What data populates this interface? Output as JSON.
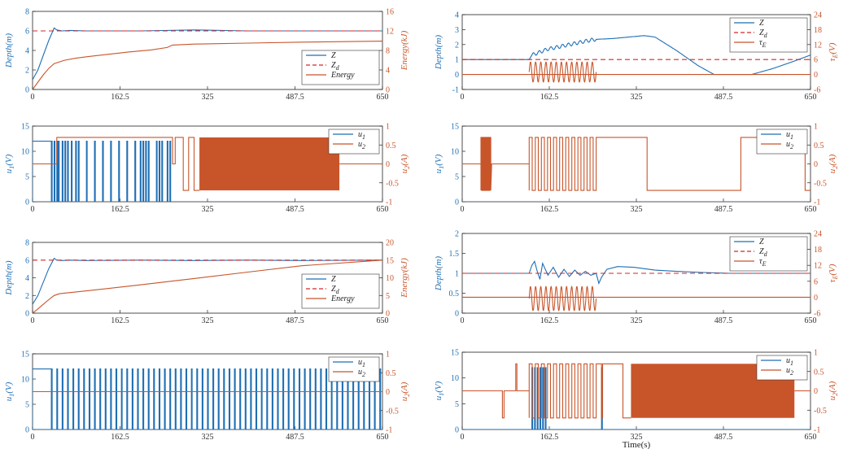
{
  "colors": {
    "blue": "#1f6fb4",
    "orange": "#c8552a",
    "red": "#d62728",
    "axis": "#333333"
  },
  "chart_data": [
    {
      "id": "a",
      "type": "line",
      "xlim": [
        0,
        650
      ],
      "xticks": [
        0,
        162.5,
        325,
        487.5,
        650
      ],
      "xtick_labels": [
        "0",
        "162.5",
        "325",
        "487.5",
        "650"
      ],
      "ylabel_left": "Depth(m)",
      "ylabel_right": "Energy(kJ)",
      "ylim_left": [
        0,
        8
      ],
      "yticks_left": [
        0,
        2,
        4,
        6,
        8
      ],
      "ytick_labels_left": [
        "0",
        "2",
        "4",
        "6",
        "8"
      ],
      "ylim_right": [
        0,
        16
      ],
      "yticks_right": [
        0,
        4,
        8,
        12,
        16
      ],
      "ytick_labels_right": [
        "0",
        "4",
        "8",
        "12",
        "16"
      ],
      "legend": [
        "Z",
        "Zd",
        "Energy"
      ],
      "legend_position": "lower-right",
      "series": [
        {
          "name": "Z",
          "axis": "left",
          "style": "solid",
          "x": [
            0,
            10,
            20,
            30,
            40,
            45,
            55,
            70,
            100,
            200,
            300,
            400,
            500,
            650
          ],
          "y": [
            1,
            2,
            3.5,
            5,
            6.3,
            6.1,
            6.0,
            6.05,
            6.0,
            6.0,
            6.1,
            6.0,
            6.0,
            6.0
          ]
        },
        {
          "name": "Zd",
          "axis": "left",
          "style": "dashed",
          "x": [
            0,
            650
          ],
          "y": [
            6,
            6
          ]
        },
        {
          "name": "Energy",
          "axis": "right",
          "style": "solid",
          "x": [
            0,
            10,
            20,
            30,
            40,
            60,
            80,
            100,
            140,
            180,
            220,
            250,
            260,
            300,
            400,
            500,
            650
          ],
          "y": [
            0,
            1.5,
            3,
            4.3,
            5.3,
            6.0,
            6.4,
            6.7,
            7.2,
            7.7,
            8.1,
            8.6,
            9.1,
            9.3,
            9.5,
            9.7,
            9.9
          ]
        }
      ]
    },
    {
      "id": "b",
      "type": "line",
      "xlim": [
        0,
        650
      ],
      "xticks": [
        0,
        162.5,
        325,
        487.5,
        650
      ],
      "xtick_labels": [
        "0",
        "162.5",
        "325",
        "487.5",
        "650"
      ],
      "ylabel_left": "u1(V)",
      "ylabel_right": "u2(A)",
      "ylim_left": [
        0,
        15
      ],
      "yticks_left": [
        0,
        5,
        10,
        15
      ],
      "ytick_labels_left": [
        "0",
        "5",
        "10",
        "15"
      ],
      "ylim_right": [
        -1,
        1
      ],
      "yticks_right": [
        -1,
        -0.5,
        0,
        0.5,
        1
      ],
      "ytick_labels_right": [
        "-1",
        "-0.5",
        "0",
        "0.5",
        "1"
      ],
      "legend": [
        "u1",
        "u2"
      ],
      "legend_position": "top-right",
      "u1_high": 12,
      "u1_high_until": 35,
      "u1_pulses": [
        35,
        40,
        45,
        48,
        55,
        60,
        65,
        72,
        80,
        85,
        100,
        115,
        130,
        145,
        160,
        175,
        190,
        200,
        205,
        210,
        215,
        230,
        235,
        240,
        250,
        255
      ],
      "u2_segments": [
        {
          "x": [
            0,
            45
          ],
          "y": 0
        },
        {
          "x": [
            45,
            260
          ],
          "y": 0.7
        },
        {
          "x": [
            260,
            265
          ],
          "y": 0
        },
        {
          "x": [
            265,
            280
          ],
          "y": 0.7
        },
        {
          "x": [
            280,
            290
          ],
          "y": -0.7
        },
        {
          "x": [
            290,
            300
          ],
          "y": 0.7
        },
        {
          "x": [
            300,
            310
          ],
          "y": -0.7
        }
      ],
      "u2_fill": {
        "x": [
          310,
          570
        ],
        "y": [
          -0.7,
          0.7
        ]
      },
      "u2_tail": {
        "x": [
          570,
          650
        ],
        "y": 0
      }
    },
    {
      "id": "c",
      "type": "line",
      "xlim": [
        0,
        650
      ],
      "xticks": [
        0,
        162.5,
        325,
        487.5,
        650
      ],
      "xtick_labels": [
        "0",
        "162.5",
        "325",
        "487.5",
        "650"
      ],
      "ylabel_left": "Depth(m)",
      "ylabel_right": "Energy(kJ)",
      "ylim_left": [
        0,
        8
      ],
      "yticks_left": [
        0,
        2,
        4,
        6,
        8
      ],
      "ytick_labels_left": [
        "0",
        "2",
        "4",
        "6",
        "8"
      ],
      "ylim_right": [
        0,
        20
      ],
      "yticks_right": [
        0,
        5,
        10,
        15,
        20
      ],
      "ytick_labels_right": [
        "0",
        "5",
        "10",
        "15",
        "20"
      ],
      "legend": [
        "Z",
        "Zd",
        "Energy"
      ],
      "legend_position": "lower-right",
      "series": [
        {
          "name": "Z",
          "axis": "left",
          "style": "solid",
          "x": [
            0,
            10,
            20,
            30,
            40,
            45,
            55,
            70,
            100,
            200,
            300,
            400,
            500,
            650
          ],
          "y": [
            1,
            2,
            3.5,
            5,
            6.2,
            6.0,
            5.95,
            6.0,
            5.95,
            6.0,
            5.95,
            6.0,
            5.95,
            6.0
          ]
        },
        {
          "name": "Zd",
          "axis": "left",
          "style": "dashed",
          "x": [
            0,
            650
          ],
          "y": [
            6,
            6
          ]
        },
        {
          "name": "Energy",
          "axis": "right",
          "style": "solid",
          "x": [
            0,
            10,
            20,
            30,
            40,
            50,
            100,
            200,
            300,
            400,
            500,
            650
          ],
          "y": [
            0,
            1.2,
            2.5,
            3.8,
            5.0,
            5.5,
            6.3,
            8.0,
            9.8,
            11.6,
            13.4,
            15.0
          ]
        }
      ]
    },
    {
      "id": "d",
      "type": "line",
      "xlim": [
        0,
        650
      ],
      "xticks": [
        0,
        162.5,
        325,
        487.5,
        650
      ],
      "xtick_labels": [
        "0",
        "162.5",
        "325",
        "487.5",
        "650"
      ],
      "ylabel_left": "u1(V)",
      "ylabel_right": "u2(A)",
      "ylim_left": [
        0,
        15
      ],
      "yticks_left": [
        0,
        5,
        10,
        15
      ],
      "ytick_labels_left": [
        "0",
        "5",
        "10",
        "15"
      ],
      "ylim_right": [
        -1,
        1
      ],
      "yticks_right": [
        -1,
        -0.5,
        0,
        0.5,
        1
      ],
      "ytick_labels_right": [
        "-1",
        "-0.5",
        "0",
        "0.5",
        "1"
      ],
      "legend": [
        "u1",
        "u2"
      ],
      "legend_position": "top-right",
      "u1_high": 12,
      "u1_high_until": 35,
      "u1_pulse_start": 35,
      "u1_pulse_end": 645,
      "u1_pulse_count": 62,
      "u2_constant": 0
    },
    {
      "id": "e",
      "type": "line",
      "xlim": [
        0,
        650
      ],
      "xticks": [
        0,
        162.5,
        325,
        487.5,
        650
      ],
      "xtick_labels": [
        "0",
        "162.5",
        "325",
        "487.5",
        "650"
      ],
      "ylabel_left": "Depth(m)",
      "ylabel_right": "τE(V)",
      "ylim_left": [
        -1,
        4
      ],
      "yticks_left": [
        -1,
        0,
        1,
        2,
        3,
        4
      ],
      "ytick_labels_left": [
        "-1",
        "0",
        "1",
        "2",
        "3",
        "4"
      ],
      "ylim_right": [
        -6,
        24
      ],
      "yticks_right": [
        -6,
        0,
        6,
        12,
        18,
        24
      ],
      "ytick_labels_right": [
        "-6",
        "0",
        "6",
        "12",
        "18",
        "24"
      ],
      "legend": [
        "Z",
        "Zd",
        "τE"
      ],
      "legend_position": "top-right",
      "series": [
        {
          "name": "Z",
          "axis": "left",
          "style": "solid",
          "x": [
            0,
            125,
            130,
            160,
            200,
            240,
            250,
            280,
            310,
            340,
            360,
            400,
            440,
            470,
            500,
            540,
            580,
            620,
            650
          ],
          "y": [
            1,
            1,
            1.3,
            1.7,
            2.0,
            2.3,
            2.35,
            2.4,
            2.5,
            2.6,
            2.5,
            1.6,
            0.6,
            0,
            0,
            0,
            0.4,
            0.9,
            1.3
          ]
        },
        {
          "name": "Zd",
          "axis": "left",
          "style": "dashed",
          "x": [
            0,
            650
          ],
          "y": [
            1,
            1
          ]
        },
        {
          "name": "τE",
          "axis": "right",
          "style": "solid",
          "x": [
            0,
            125,
            250,
            650
          ],
          "y": [
            0,
            0,
            0,
            0
          ]
        }
      ],
      "tau_osc": {
        "x": [
          125,
          250
        ],
        "y": [
          -3,
          5
        ],
        "cycles": 13
      },
      "z_osc": {
        "x": [
          130,
          250
        ],
        "amp": 0.12,
        "cycles": 11
      }
    },
    {
      "id": "f",
      "type": "line",
      "xlim": [
        0,
        650
      ],
      "xticks": [
        0,
        162.5,
        325,
        487.5,
        650
      ],
      "xtick_labels": [
        "0",
        "162.5",
        "325",
        "487.5",
        "650"
      ],
      "ylabel_left": "u1(V)",
      "ylabel_right": "u2(A)",
      "ylim_left": [
        0,
        15
      ],
      "yticks_left": [
        0,
        5,
        10,
        15
      ],
      "ytick_labels_left": [
        "0",
        "5",
        "10",
        "15"
      ],
      "ylim_right": [
        -1,
        1
      ],
      "yticks_right": [
        -1,
        -0.5,
        0,
        0.5,
        1
      ],
      "ytick_labels_right": [
        "-1",
        "-0.5",
        "0",
        "0.5",
        "1"
      ],
      "legend": [
        "u1",
        "u2"
      ],
      "legend_position": "top-right",
      "u2_segments": [
        {
          "x": [
            0,
            35
          ],
          "y": 0
        },
        {
          "x": [
            35,
            55
          ],
          "y": "burst"
        },
        {
          "x": [
            55,
            125
          ],
          "y": 0
        },
        {
          "x": [
            125,
            250
          ],
          "y": "square"
        },
        {
          "x": [
            250,
            345
          ],
          "y": 0.7
        },
        {
          "x": [
            345,
            520
          ],
          "y": -0.7
        },
        {
          "x": [
            520,
            640
          ],
          "y": 0.7
        },
        {
          "x": [
            640,
            650
          ],
          "y": -0.7
        }
      ],
      "u1_constant": 0
    },
    {
      "id": "g",
      "type": "line",
      "xlim": [
        0,
        650
      ],
      "xticks": [
        0,
        162.5,
        325,
        487.5,
        650
      ],
      "xtick_labels": [
        "0",
        "162.5",
        "325",
        "487.5",
        "650"
      ],
      "ylabel_left": "Depth(m)",
      "ylabel_right": "τE(V)",
      "ylim_left": [
        0,
        2
      ],
      "yticks_left": [
        0,
        0.5,
        1,
        1.5,
        2
      ],
      "ytick_labels_left": [
        "0",
        "0.5",
        "1",
        "1.5",
        "2"
      ],
      "ylim_right": [
        -6,
        24
      ],
      "yticks_right": [
        -6,
        0,
        6,
        12,
        18,
        24
      ],
      "ytick_labels_right": [
        "-6",
        "0",
        "6",
        "12",
        "18",
        "24"
      ],
      "legend": [
        "Z",
        "Zd",
        "τE"
      ],
      "legend_position": "top-right",
      "series": [
        {
          "name": "Z",
          "axis": "left",
          "style": "solid",
          "x": [
            0,
            125,
            130,
            135,
            140,
            145,
            150,
            160,
            170,
            180,
            190,
            200,
            210,
            220,
            230,
            240,
            250,
            255,
            260,
            270,
            290,
            320,
            360,
            400,
            450,
            500,
            650
          ],
          "y": [
            1,
            1,
            1.2,
            1.3,
            1.05,
            0.85,
            1.25,
            0.95,
            1.15,
            0.9,
            1.1,
            0.92,
            1.08,
            0.95,
            1.05,
            0.95,
            1.0,
            0.75,
            0.9,
            1.1,
            1.17,
            1.15,
            1.08,
            1.05,
            1.02,
            1.0,
            1.0
          ]
        },
        {
          "name": "Zd",
          "axis": "left",
          "style": "dashed",
          "x": [
            0,
            650
          ],
          "y": [
            1,
            1
          ]
        },
        {
          "name": "τE",
          "axis": "right",
          "style": "solid",
          "x": [
            0,
            125,
            250,
            650
          ],
          "y": [
            0,
            0,
            0,
            0
          ]
        }
      ],
      "tau_osc": {
        "x": [
          125,
          250
        ],
        "y": [
          -5,
          4
        ],
        "cycles": 13
      }
    },
    {
      "id": "h",
      "type": "line",
      "xlim": [
        0,
        650
      ],
      "xticks": [
        0,
        162.5,
        325,
        487.5,
        650
      ],
      "xtick_labels": [
        "0",
        "162.5",
        "325",
        "487.5",
        "650"
      ],
      "xlabel": "Time(s)",
      "ylabel_left": "u1(V)",
      "ylabel_right": "u2(A)",
      "ylim_left": [
        0,
        15
      ],
      "yticks_left": [
        0,
        5,
        10,
        15
      ],
      "ytick_labels_left": [
        "0",
        "5",
        "10",
        "15"
      ],
      "ylim_right": [
        -1,
        1
      ],
      "yticks_right": [
        -1,
        -0.5,
        0,
        0.5,
        1
      ],
      "ytick_labels_right": [
        "-1",
        "-0.5",
        "0",
        "0.5",
        "1"
      ],
      "legend": [
        "u1",
        "u2"
      ],
      "legend_position": "top-right",
      "u1_pulses": [
        130,
        135,
        140,
        145,
        150,
        155,
        260
      ],
      "u2_segments": [
        {
          "x": [
            0,
            75
          ],
          "y": 0
        },
        {
          "x": [
            75,
            78
          ],
          "y": -0.7
        },
        {
          "x": [
            78,
            100
          ],
          "y": 0
        },
        {
          "x": [
            100,
            102
          ],
          "y": 0.7
        },
        {
          "x": [
            102,
            125
          ],
          "y": 0
        },
        {
          "x": [
            125,
            250
          ],
          "y": "square"
        },
        {
          "x": [
            250,
            260
          ],
          "y": 0.7
        },
        {
          "x": [
            260,
            262
          ],
          "y": -0.7
        },
        {
          "x": [
            262,
            300
          ],
          "y": 0.7
        },
        {
          "x": [
            300,
            315
          ],
          "y": -0.7
        }
      ],
      "u2_fill": {
        "x": [
          315,
          620
        ],
        "y": [
          -0.7,
          0.7
        ]
      },
      "u2_tail": {
        "x": [
          620,
          650
        ],
        "y": 0
      }
    }
  ]
}
